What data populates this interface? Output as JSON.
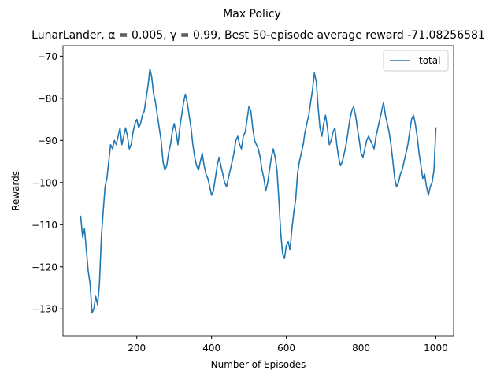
{
  "figure": {
    "suptitle": "Max Policy"
  },
  "chart_data": {
    "type": "line",
    "title": "LunarLander, α = 0.005, γ = 0.99, Best 50-episode average reward -71.08256581",
    "xlabel": "Number of Episodes",
    "ylabel": "Rewards",
    "xlim": [
      2.5,
      1047.5
    ],
    "ylim": [
      -136.5,
      -67.5
    ],
    "xticks": [
      200,
      400,
      600,
      800,
      1000
    ],
    "yticks": [
      -130,
      -120,
      -110,
      -100,
      -90,
      -80,
      -70
    ],
    "grid": false,
    "legend": {
      "position": "top-right",
      "entries": [
        "total"
      ]
    },
    "colors": {
      "total": "#1f77b4"
    },
    "series": [
      {
        "name": "total",
        "x": [
          50,
          55,
          60,
          65,
          70,
          75,
          80,
          85,
          90,
          95,
          100,
          105,
          110,
          115,
          120,
          125,
          130,
          135,
          140,
          145,
          150,
          155,
          160,
          165,
          170,
          175,
          180,
          185,
          190,
          195,
          200,
          205,
          210,
          215,
          220,
          225,
          230,
          235,
          240,
          245,
          250,
          255,
          260,
          265,
          270,
          275,
          280,
          285,
          290,
          295,
          300,
          305,
          310,
          315,
          320,
          325,
          330,
          335,
          340,
          345,
          350,
          355,
          360,
          365,
          370,
          375,
          380,
          385,
          390,
          395,
          400,
          405,
          410,
          415,
          420,
          425,
          430,
          435,
          440,
          445,
          450,
          455,
          460,
          465,
          470,
          475,
          480,
          485,
          490,
          495,
          500,
          505,
          510,
          515,
          520,
          525,
          530,
          535,
          540,
          545,
          550,
          555,
          560,
          565,
          570,
          575,
          580,
          585,
          590,
          595,
          600,
          605,
          610,
          615,
          620,
          625,
          630,
          635,
          640,
          645,
          650,
          655,
          660,
          665,
          670,
          675,
          680,
          685,
          690,
          695,
          700,
          705,
          710,
          715,
          720,
          725,
          730,
          735,
          740,
          745,
          750,
          755,
          760,
          765,
          770,
          775,
          780,
          785,
          790,
          795,
          800,
          805,
          810,
          815,
          820,
          825,
          830,
          835,
          840,
          845,
          850,
          855,
          860,
          865,
          870,
          875,
          880,
          885,
          890,
          895,
          900,
          905,
          910,
          915,
          920,
          925,
          930,
          935,
          940,
          945,
          950,
          955,
          960,
          965,
          970,
          975,
          980,
          985,
          990,
          995,
          1000
        ],
        "values": [
          -108,
          -113,
          -111,
          -116,
          -121,
          -124,
          -131,
          -130,
          -127,
          -129,
          -124,
          -113,
          -107,
          -101,
          -99,
          -95,
          -91,
          -92,
          -90,
          -91,
          -89,
          -87,
          -91,
          -89,
          -87,
          -89,
          -92,
          -91,
          -88,
          -86,
          -85,
          -87,
          -86,
          -84,
          -83,
          -80,
          -77,
          -73,
          -75,
          -79,
          -81,
          -84,
          -87,
          -90,
          -95,
          -97,
          -96,
          -93,
          -91,
          -88,
          -86,
          -88,
          -91,
          -87,
          -84,
          -81,
          -79,
          -81,
          -84,
          -87,
          -91,
          -94,
          -96,
          -97,
          -95,
          -93,
          -96,
          -98,
          -99,
          -101,
          -103,
          -102,
          -99,
          -96,
          -94,
          -96,
          -98,
          -100,
          -101,
          -99,
          -97,
          -95,
          -93,
          -90,
          -89,
          -91,
          -92,
          -89,
          -88,
          -85,
          -82,
          -83,
          -87,
          -90,
          -91,
          -92,
          -94,
          -97,
          -99,
          -102,
          -100,
          -97,
          -94,
          -92,
          -94,
          -97,
          -104,
          -112,
          -117,
          -118,
          -115,
          -114,
          -116,
          -111,
          -107,
          -104,
          -98,
          -95,
          -93,
          -91,
          -88,
          -86,
          -84,
          -81,
          -78,
          -74,
          -76,
          -82,
          -87,
          -89,
          -86,
          -84,
          -87,
          -91,
          -90,
          -88,
          -87,
          -91,
          -94,
          -96,
          -95,
          -93,
          -91,
          -88,
          -85,
          -83,
          -82,
          -84,
          -87,
          -90,
          -93,
          -94,
          -92,
          -90,
          -89,
          -90,
          -91,
          -92,
          -89,
          -87,
          -85,
          -83,
          -81,
          -84,
          -86,
          -88,
          -91,
          -95,
          -99,
          -101,
          -100,
          -98,
          -97,
          -95,
          -93,
          -91,
          -88,
          -85,
          -84,
          -86,
          -89,
          -93,
          -96,
          -99,
          -98,
          -101,
          -103,
          -101,
          -100,
          -97,
          -87
        ]
      }
    ]
  }
}
